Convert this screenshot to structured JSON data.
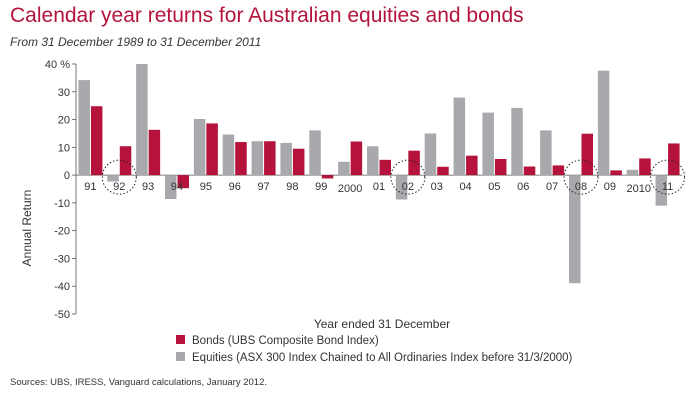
{
  "title": "Calendar year returns for Australian equities and bonds",
  "subtitle": "From 31 December 1989 to 31 December 2011",
  "source": "Sources: UBS, IRESS, Vanguard calculations, January 2012.",
  "colors": {
    "bonds": "#b5133c",
    "equities": "#a7a9ac",
    "title": "#b5133c"
  },
  "chart_data": {
    "type": "bar",
    "title": "Calendar year returns for Australian equities and bonds",
    "subtitle": "From 31 December 1989 to 31 December 2011",
    "xlabel": "Year ended 31 December",
    "ylabel": "Annual Return",
    "ylim": [
      -50,
      40
    ],
    "yticks": [
      40,
      30,
      20,
      10,
      0,
      -10,
      -20,
      -30,
      -40,
      -50
    ],
    "ytick_labels": [
      "40 %",
      "30",
      "20",
      "10",
      "0",
      "-10",
      "-20",
      "-30",
      "-40",
      "-50"
    ],
    "grid": false,
    "legend_position": "bottom-center",
    "categories": [
      "91",
      "92",
      "93",
      "94",
      "95",
      "96",
      "97",
      "98",
      "99",
      "2000",
      "01",
      "02",
      "03",
      "04",
      "05",
      "06",
      "07",
      "08",
      "09",
      "2010",
      "11"
    ],
    "series": [
      {
        "name": "Equities (ASX 300 Index Chained to All Ordinaries Index before 31/3/2000)",
        "color": "#a7a9ac",
        "values": [
          34.2,
          -2.3,
          40.0,
          -8.6,
          20.2,
          14.6,
          12.2,
          11.6,
          16.1,
          4.8,
          10.4,
          -8.8,
          15.0,
          27.9,
          22.5,
          24.2,
          16.1,
          -38.9,
          37.6,
          1.9,
          -11.0
        ]
      },
      {
        "name": "Bonds (UBS Composite Bond Index)",
        "color": "#b5133c",
        "values": [
          24.8,
          10.4,
          16.3,
          -4.7,
          18.6,
          11.9,
          12.2,
          9.5,
          -1.2,
          12.1,
          5.5,
          8.8,
          3.0,
          7.0,
          5.8,
          3.1,
          3.5,
          14.9,
          1.7,
          6.0,
          11.4
        ]
      }
    ],
    "highlighted_years": [
      "92",
      "02",
      "08",
      "11"
    ]
  }
}
